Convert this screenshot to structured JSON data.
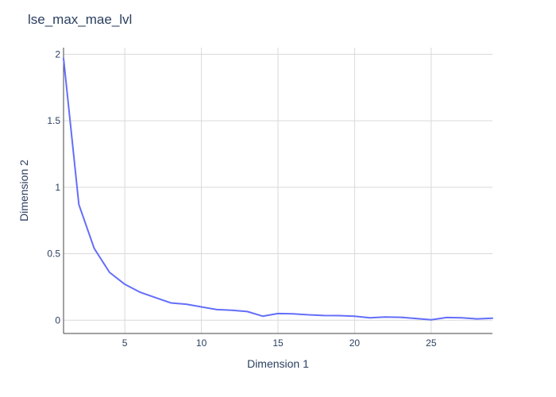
{
  "chart_data": {
    "type": "line",
    "title": "lse_max_mae_lvl",
    "xlabel": "Dimension 1",
    "ylabel": "Dimension 2",
    "xlim": [
      1,
      29
    ],
    "ylim": [
      -0.1,
      2.05
    ],
    "x_ticks": [
      5,
      10,
      15,
      20,
      25
    ],
    "y_ticks": [
      0,
      0.5,
      1,
      1.5,
      2
    ],
    "y_tick_labels": [
      "0",
      "0.5",
      "1",
      "1.5",
      "2"
    ],
    "grid": true,
    "legend": "none",
    "line_color": "#636efa",
    "series": [
      {
        "x": [
          1,
          2,
          3,
          4,
          5,
          6,
          7,
          8,
          9,
          10,
          11,
          12,
          13,
          14,
          15,
          16,
          17,
          18,
          19,
          20,
          21,
          22,
          23,
          24,
          25,
          26,
          27,
          28,
          29
        ],
        "values": [
          1.97,
          0.87,
          0.54,
          0.36,
          0.27,
          0.21,
          0.17,
          0.13,
          0.12,
          0.1,
          0.08,
          0.075,
          0.065,
          0.03,
          0.05,
          0.048,
          0.04,
          0.035,
          0.034,
          0.03,
          0.018,
          0.024,
          0.022,
          0.013,
          0.003,
          0.02,
          0.018,
          0.01,
          0.015
        ]
      }
    ]
  }
}
